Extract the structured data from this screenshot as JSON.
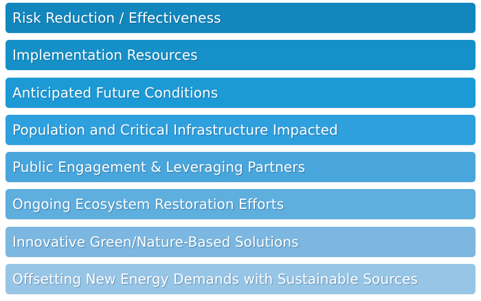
{
  "items": [
    {
      "label": "Risk Reduction / Effectiveness",
      "color": "#1287BE"
    },
    {
      "label": "Implementation Resources",
      "color": "#1590C8"
    },
    {
      "label": "Anticipated Future Conditions",
      "color": "#1C9AD6"
    },
    {
      "label": "Population and Critical Infrastructure Impacted",
      "color": "#2FA0DE"
    },
    {
      "label": "Public Engagement & Leveraging Partners",
      "color": "#49A6DC"
    },
    {
      "label": "Ongoing Ecosystem Restoration Efforts",
      "color": "#5EAEDE"
    },
    {
      "label": "Innovative Green/Nature-Based Solutions",
      "color": "#7BB7E0"
    },
    {
      "label": "Offsetting New Energy Demands with Sustainable Sources",
      "color": "#97C5E6"
    }
  ]
}
